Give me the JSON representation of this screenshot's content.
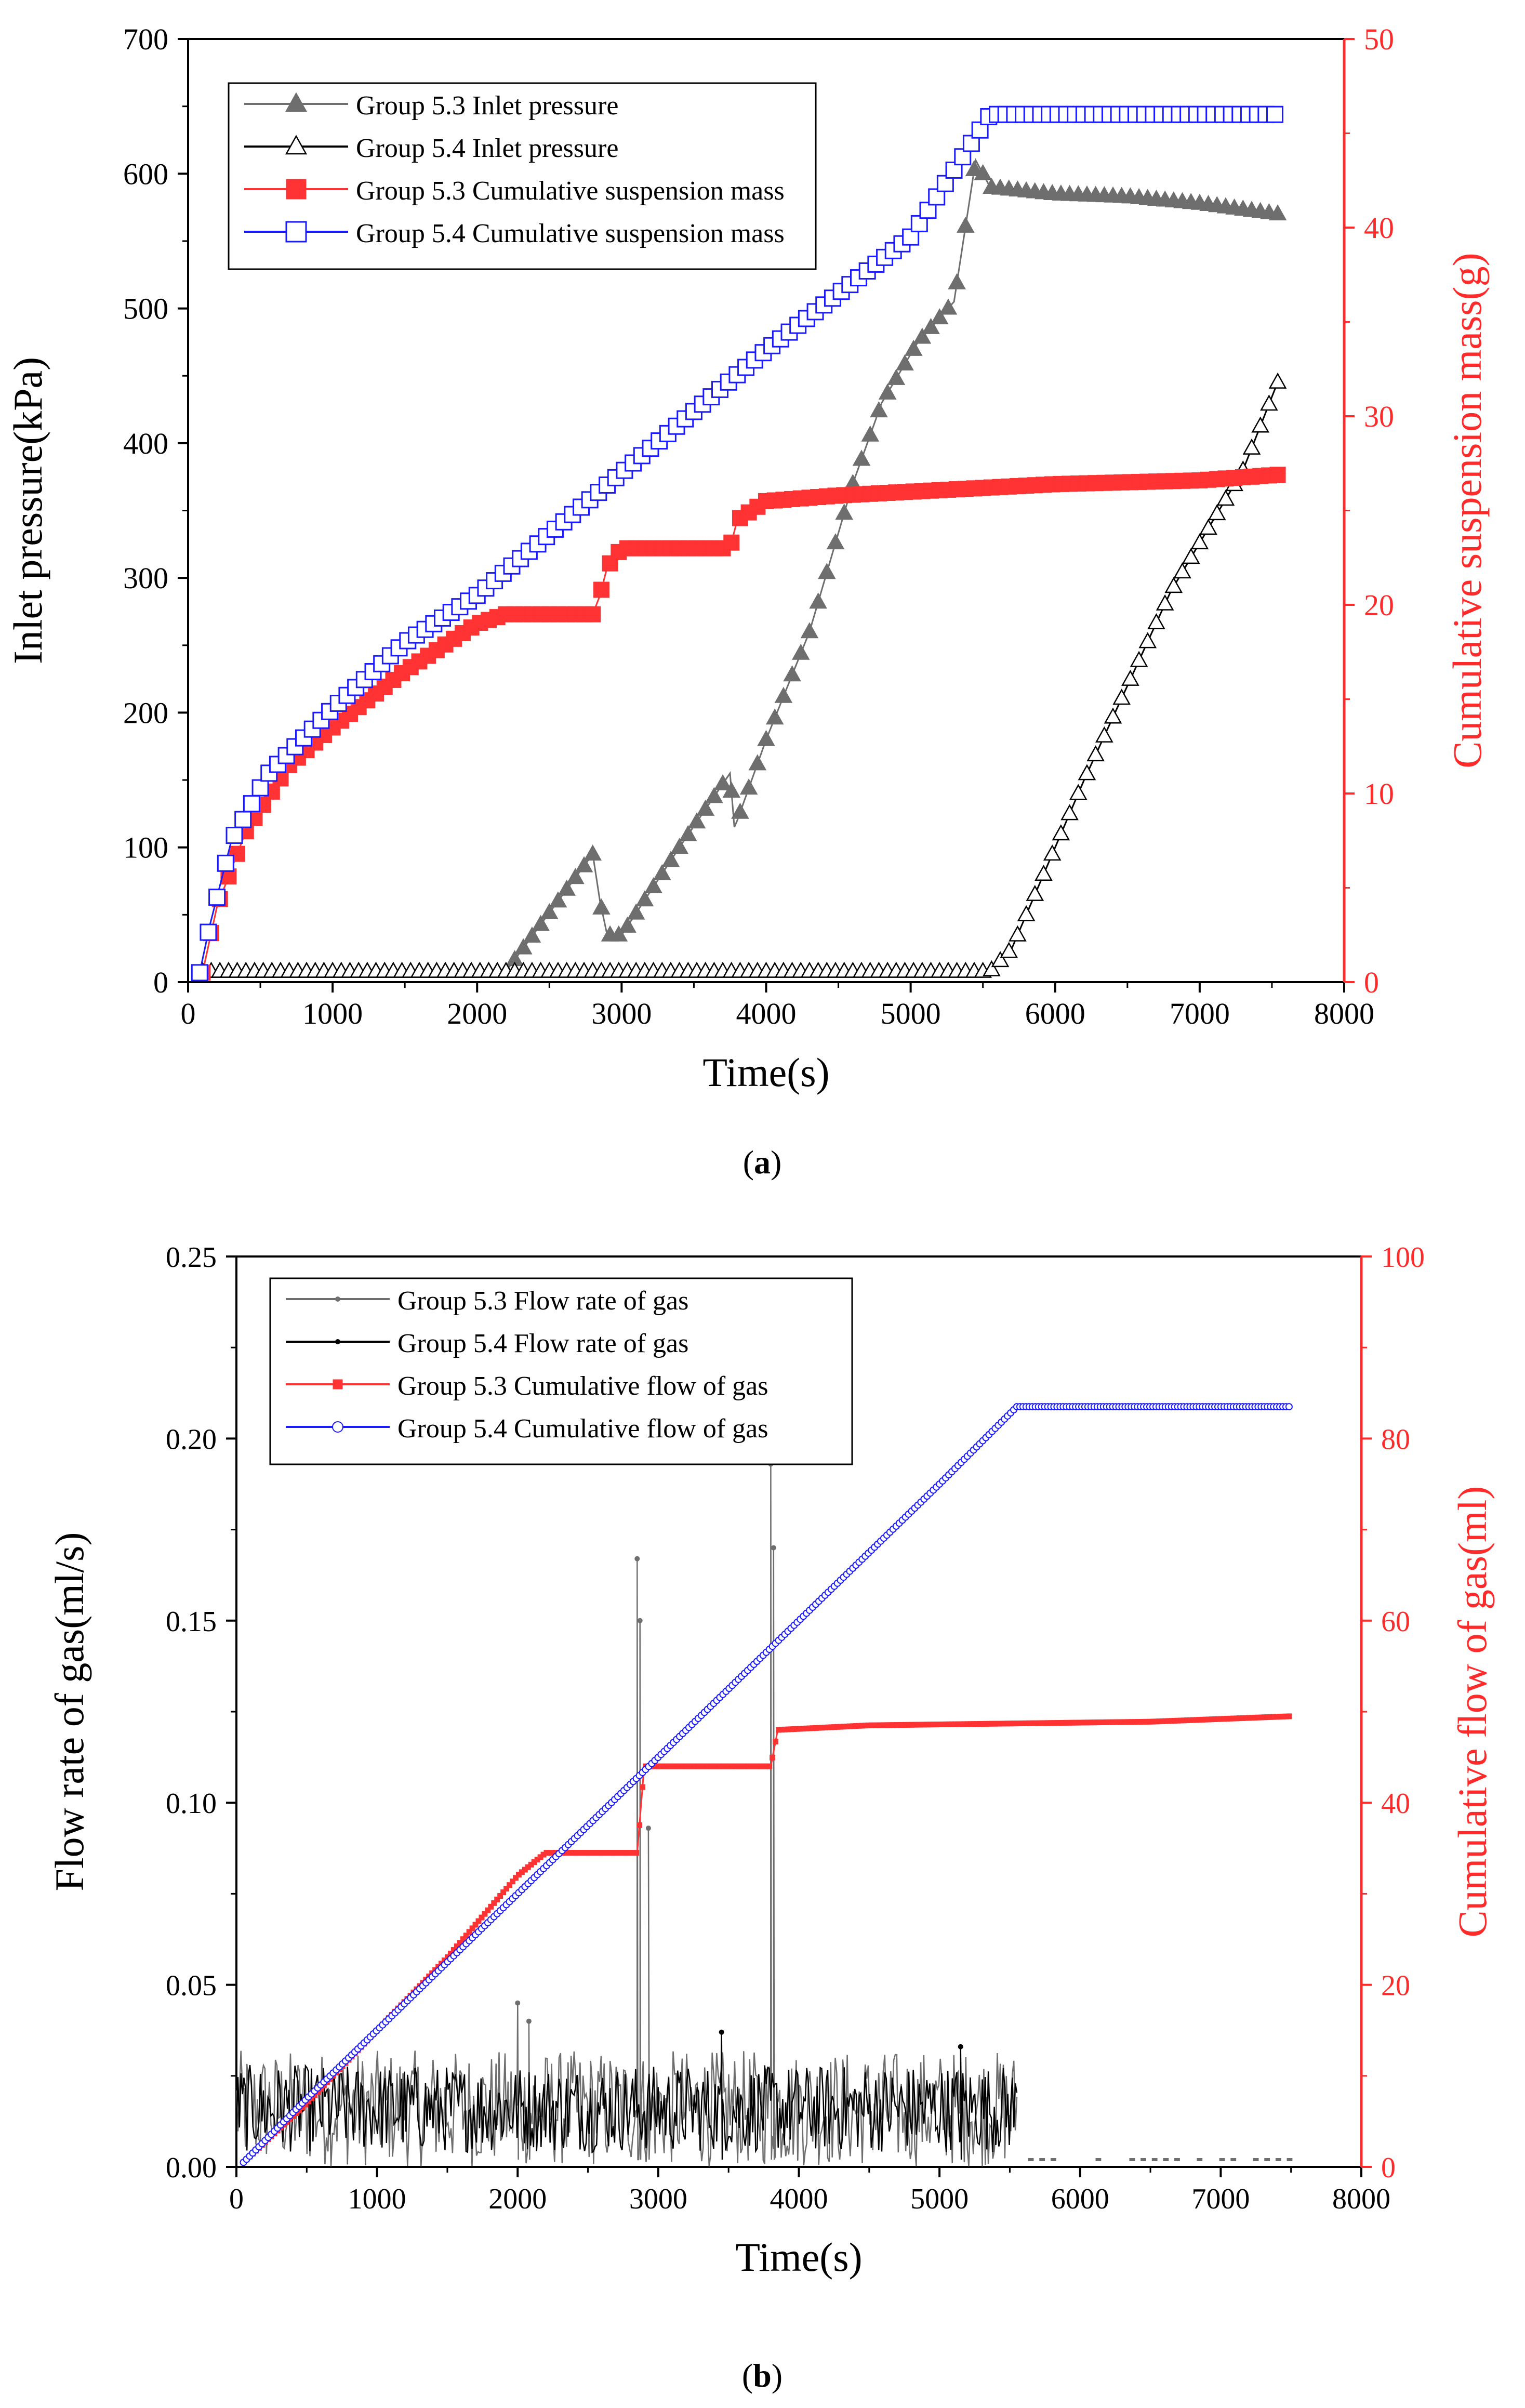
{
  "chart_data": [
    {
      "type": "line",
      "panel_label": "a",
      "xlabel": "Time(s)",
      "ylabel_left": "Inlet pressure(kPa)",
      "ylabel_right": "Cumulative suspension mass(g)",
      "xlim": [
        0,
        8000
      ],
      "ylim_left": [
        0,
        700
      ],
      "ylim_right": [
        0,
        50
      ],
      "x_ticks": [
        "0",
        "1000",
        "2000",
        "3000",
        "4000",
        "5000",
        "6000",
        "7000",
        "8000"
      ],
      "y_ticks_left": [
        "0",
        "100",
        "200",
        "300",
        "400",
        "500",
        "600",
        "700"
      ],
      "y_ticks_right": [
        "0",
        "10",
        "20",
        "30",
        "40",
        "50"
      ],
      "legend_position": "top-left",
      "colors": {
        "axis_right": "#ff2a2a",
        "gray": "#6e6e6e",
        "black": "#000000",
        "red": "#ff3333",
        "blue": "#1a1aff"
      },
      "series": [
        {
          "name": "Group 5.3 Inlet pressure",
          "axis": "left",
          "marker": "filled-triangle",
          "points": [
            [
              100,
              8
            ],
            [
              2200,
              8
            ],
            [
              2800,
              95
            ],
            [
              2850,
              60
            ],
            [
              2900,
              35
            ],
            [
              3000,
              35
            ],
            [
              3400,
              100
            ],
            [
              3750,
              155
            ],
            [
              3780,
              115
            ],
            [
              3800,
              120
            ],
            [
              4000,
              180
            ],
            [
              4300,
              260
            ],
            [
              4600,
              370
            ],
            [
              4800,
              430
            ],
            [
              5050,
              475
            ],
            [
              5300,
              505
            ],
            [
              5450,
              610
            ],
            [
              5550,
              590
            ],
            [
              6000,
              585
            ],
            [
              6500,
              583
            ],
            [
              7000,
              578
            ],
            [
              7550,
              570
            ]
          ]
        },
        {
          "name": "Group 5.4 Inlet pressure",
          "axis": "left",
          "marker": "open-triangle",
          "points": [
            [
              100,
              8
            ],
            [
              5550,
              8
            ],
            [
              5700,
              25
            ],
            [
              6200,
              150
            ],
            [
              6800,
              290
            ],
            [
              7300,
              380
            ],
            [
              7550,
              448
            ]
          ]
        },
        {
          "name": "Group 5.3 Cumulative suspension mass",
          "axis": "right",
          "marker": "filled-square",
          "points": [
            [
              100,
              0.5
            ],
            [
              200,
              4
            ],
            [
              400,
              8
            ],
            [
              700,
              11.5
            ],
            [
              1000,
              13.5
            ],
            [
              1500,
              16.5
            ],
            [
              2000,
              19
            ],
            [
              2200,
              19.5
            ],
            [
              2800,
              19.5
            ],
            [
              2850,
              20.5
            ],
            [
              2900,
              22
            ],
            [
              3000,
              23
            ],
            [
              3750,
              23
            ],
            [
              3800,
              24.5
            ],
            [
              4000,
              25.5
            ],
            [
              4500,
              25.8
            ],
            [
              5000,
              26
            ],
            [
              5500,
              26.2
            ],
            [
              6000,
              26.4
            ],
            [
              7000,
              26.6
            ],
            [
              7550,
              26.9
            ]
          ]
        },
        {
          "name": "Group 5.4 Cumulative suspension mass",
          "axis": "right",
          "marker": "open-square",
          "points": [
            [
              80,
              0.5
            ],
            [
              150,
              3
            ],
            [
              300,
              7.5
            ],
            [
              550,
              11
            ],
            [
              1000,
              14.5
            ],
            [
              1500,
              18
            ],
            [
              2000,
              20.5
            ],
            [
              3000,
              27
            ],
            [
              4000,
              33.5
            ],
            [
              5000,
              39.5
            ],
            [
              5550,
              46
            ],
            [
              7550,
              46
            ]
          ]
        }
      ]
    },
    {
      "type": "line",
      "panel_label": "b",
      "xlabel": "Time(s)",
      "ylabel_left": "Flow rate of gas(ml/s)",
      "ylabel_right": "Cumulative flow of gas(ml)",
      "xlim": [
        0,
        8000
      ],
      "ylim_left": [
        0,
        0.25
      ],
      "ylim_right": [
        0,
        100
      ],
      "x_ticks": [
        "0",
        "1000",
        "2000",
        "3000",
        "4000",
        "5000",
        "6000",
        "7000",
        "8000"
      ],
      "y_ticks_left": [
        "0.00",
        "0.05",
        "0.10",
        "0.15",
        "0.20",
        "0.25"
      ],
      "y_ticks_right": [
        "0",
        "20",
        "40",
        "60",
        "80",
        "100"
      ],
      "legend_position": "top-left",
      "colors": {
        "axis_right": "#ff2a2a",
        "gray": "#6e6e6e",
        "black": "#000000",
        "red": "#ff3333",
        "blue": "#1a1aff"
      },
      "series": [
        {
          "name": "Group 5.3 Flow rate of gas",
          "axis": "left",
          "style": "noisy",
          "range": [
            0,
            5550
          ],
          "base": 0.016,
          "amplitude": 0.016,
          "spikes": [
            [
              2000,
              0.045
            ],
            [
              2080,
              0.04
            ],
            [
              2850,
              0.167
            ],
            [
              2870,
              0.15
            ],
            [
              2930,
              0.093
            ],
            [
              3800,
              0.193
            ],
            [
              3820,
              0.17
            ]
          ],
          "tail": {
            "range": [
              5550,
              7500
            ],
            "value": 0.002
          }
        },
        {
          "name": "Group 5.4 Flow rate of gas",
          "axis": "left",
          "style": "noisy",
          "range": [
            0,
            5550
          ],
          "base": 0.016,
          "amplitude": 0.012,
          "spikes": [
            [
              3450,
              0.037
            ],
            [
              5150,
              0.033
            ]
          ]
        },
        {
          "name": "Group 5.3 Cumulative flow of gas",
          "axis": "right",
          "marker": "small-filled-square",
          "points": [
            [
              50,
              0.5
            ],
            [
              500,
              7
            ],
            [
              1000,
              15
            ],
            [
              1500,
              23
            ],
            [
              2000,
              32
            ],
            [
              2200,
              34.5
            ],
            [
              2850,
              34.5
            ],
            [
              2900,
              44
            ],
            [
              3800,
              44
            ],
            [
              3850,
              48
            ],
            [
              4500,
              48.5
            ],
            [
              5500,
              48.7
            ],
            [
              6500,
              48.9
            ],
            [
              7500,
              49.5
            ]
          ]
        },
        {
          "name": "Group 5.4 Cumulative flow of gas",
          "axis": "right",
          "marker": "small-open-circle",
          "points": [
            [
              50,
              0.5
            ],
            [
              500,
              7.5
            ],
            [
              1000,
              15
            ],
            [
              2000,
              30
            ],
            [
              3000,
              45
            ],
            [
              4000,
              60
            ],
            [
              5000,
              75
            ],
            [
              5550,
              83.5
            ],
            [
              7500,
              83.5
            ]
          ]
        }
      ]
    }
  ]
}
